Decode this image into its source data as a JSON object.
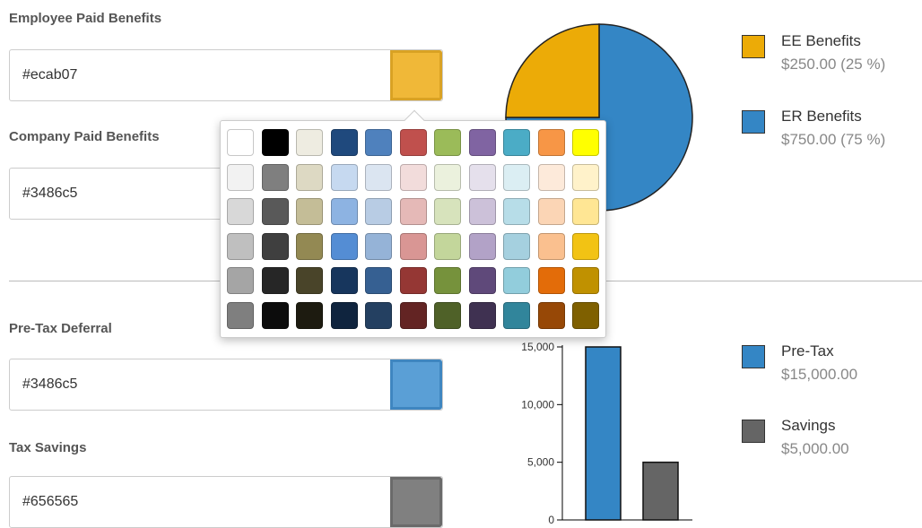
{
  "benefits": {
    "ee_label": "Employee Paid Benefits",
    "ee_value": "#ecab07",
    "er_label": "Company Paid Benefits",
    "er_value": "#3486c5"
  },
  "savings": {
    "pretax_label": "Pre-Tax Deferral",
    "pretax_value": "#3486c5",
    "tax_label": "Tax Savings",
    "tax_value": "#656565"
  },
  "swatch_button_colors": [
    "#f0b838",
    "#5a9fd6",
    "#808080"
  ],
  "palette": {
    "rows": [
      [
        "#ffffff",
        "#000000",
        "#eeece1",
        "#1f497d",
        "#4f81bd",
        "#c0504d",
        "#9bbb59",
        "#8064a2",
        "#4bacc6",
        "#f79646",
        "#ffff00"
      ],
      [
        "#f2f2f2",
        "#7f7f7f",
        "#ddd9c3",
        "#c6d9f0",
        "#dbe5f1",
        "#f2dcdb",
        "#ebf1dd",
        "#e5e0ec",
        "#dbeef3",
        "#fdeada",
        "#fff2ca"
      ],
      [
        "#d8d8d8",
        "#595959",
        "#c4bd97",
        "#8db3e2",
        "#b8cce4",
        "#e5b9b7",
        "#d7e3bc",
        "#ccc1d9",
        "#b7dde8",
        "#fbd5b5",
        "#ffe694"
      ],
      [
        "#bfbfbf",
        "#3f3f3f",
        "#938953",
        "#548dd4",
        "#95b3d7",
        "#d99694",
        "#c3d69b",
        "#b2a2c7",
        "#a5d0df",
        "#fac08f",
        "#f2c314"
      ],
      [
        "#a5a5a5",
        "#262626",
        "#494429",
        "#17365d",
        "#366092",
        "#953734",
        "#76923c",
        "#5f497a",
        "#92cddc",
        "#e36c09",
        "#c09100"
      ],
      [
        "#7f7f7f",
        "#0c0c0c",
        "#1d1b10",
        "#0f243e",
        "#244061",
        "#632423",
        "#4f6128",
        "#3f3151",
        "#31859b",
        "#974806",
        "#7f6000"
      ]
    ]
  },
  "pie_chart": {
    "chart_data": {
      "type": "pie",
      "slices": [
        {
          "label": "EE Benefits",
          "value": 250.0,
          "percent": 25,
          "color": "#ecab07"
        },
        {
          "label": "ER Benefits",
          "value": 750.0,
          "percent": 75,
          "color": "#3486c5"
        }
      ]
    },
    "legend": [
      {
        "name": "EE Benefits",
        "detail": "$250.00 (25 %)",
        "color": "#ecab07"
      },
      {
        "name": "ER Benefits",
        "detail": "$750.00 (75 %)",
        "color": "#3486c5"
      }
    ]
  },
  "bar_chart": {
    "chart_data": {
      "type": "bar",
      "categories": [
        "Pre-Tax",
        "Savings"
      ],
      "values": [
        15000,
        5000
      ],
      "colors": [
        "#3486c5",
        "#656565"
      ],
      "ylim": [
        0,
        15000
      ],
      "yticks": [
        "0",
        "5,000",
        "10,000",
        "15,000"
      ]
    },
    "legend": [
      {
        "name": "Pre-Tax",
        "detail": "$15,000.00",
        "color": "#3486c5"
      },
      {
        "name": "Savings",
        "detail": "$5,000.00",
        "color": "#656565"
      }
    ]
  }
}
